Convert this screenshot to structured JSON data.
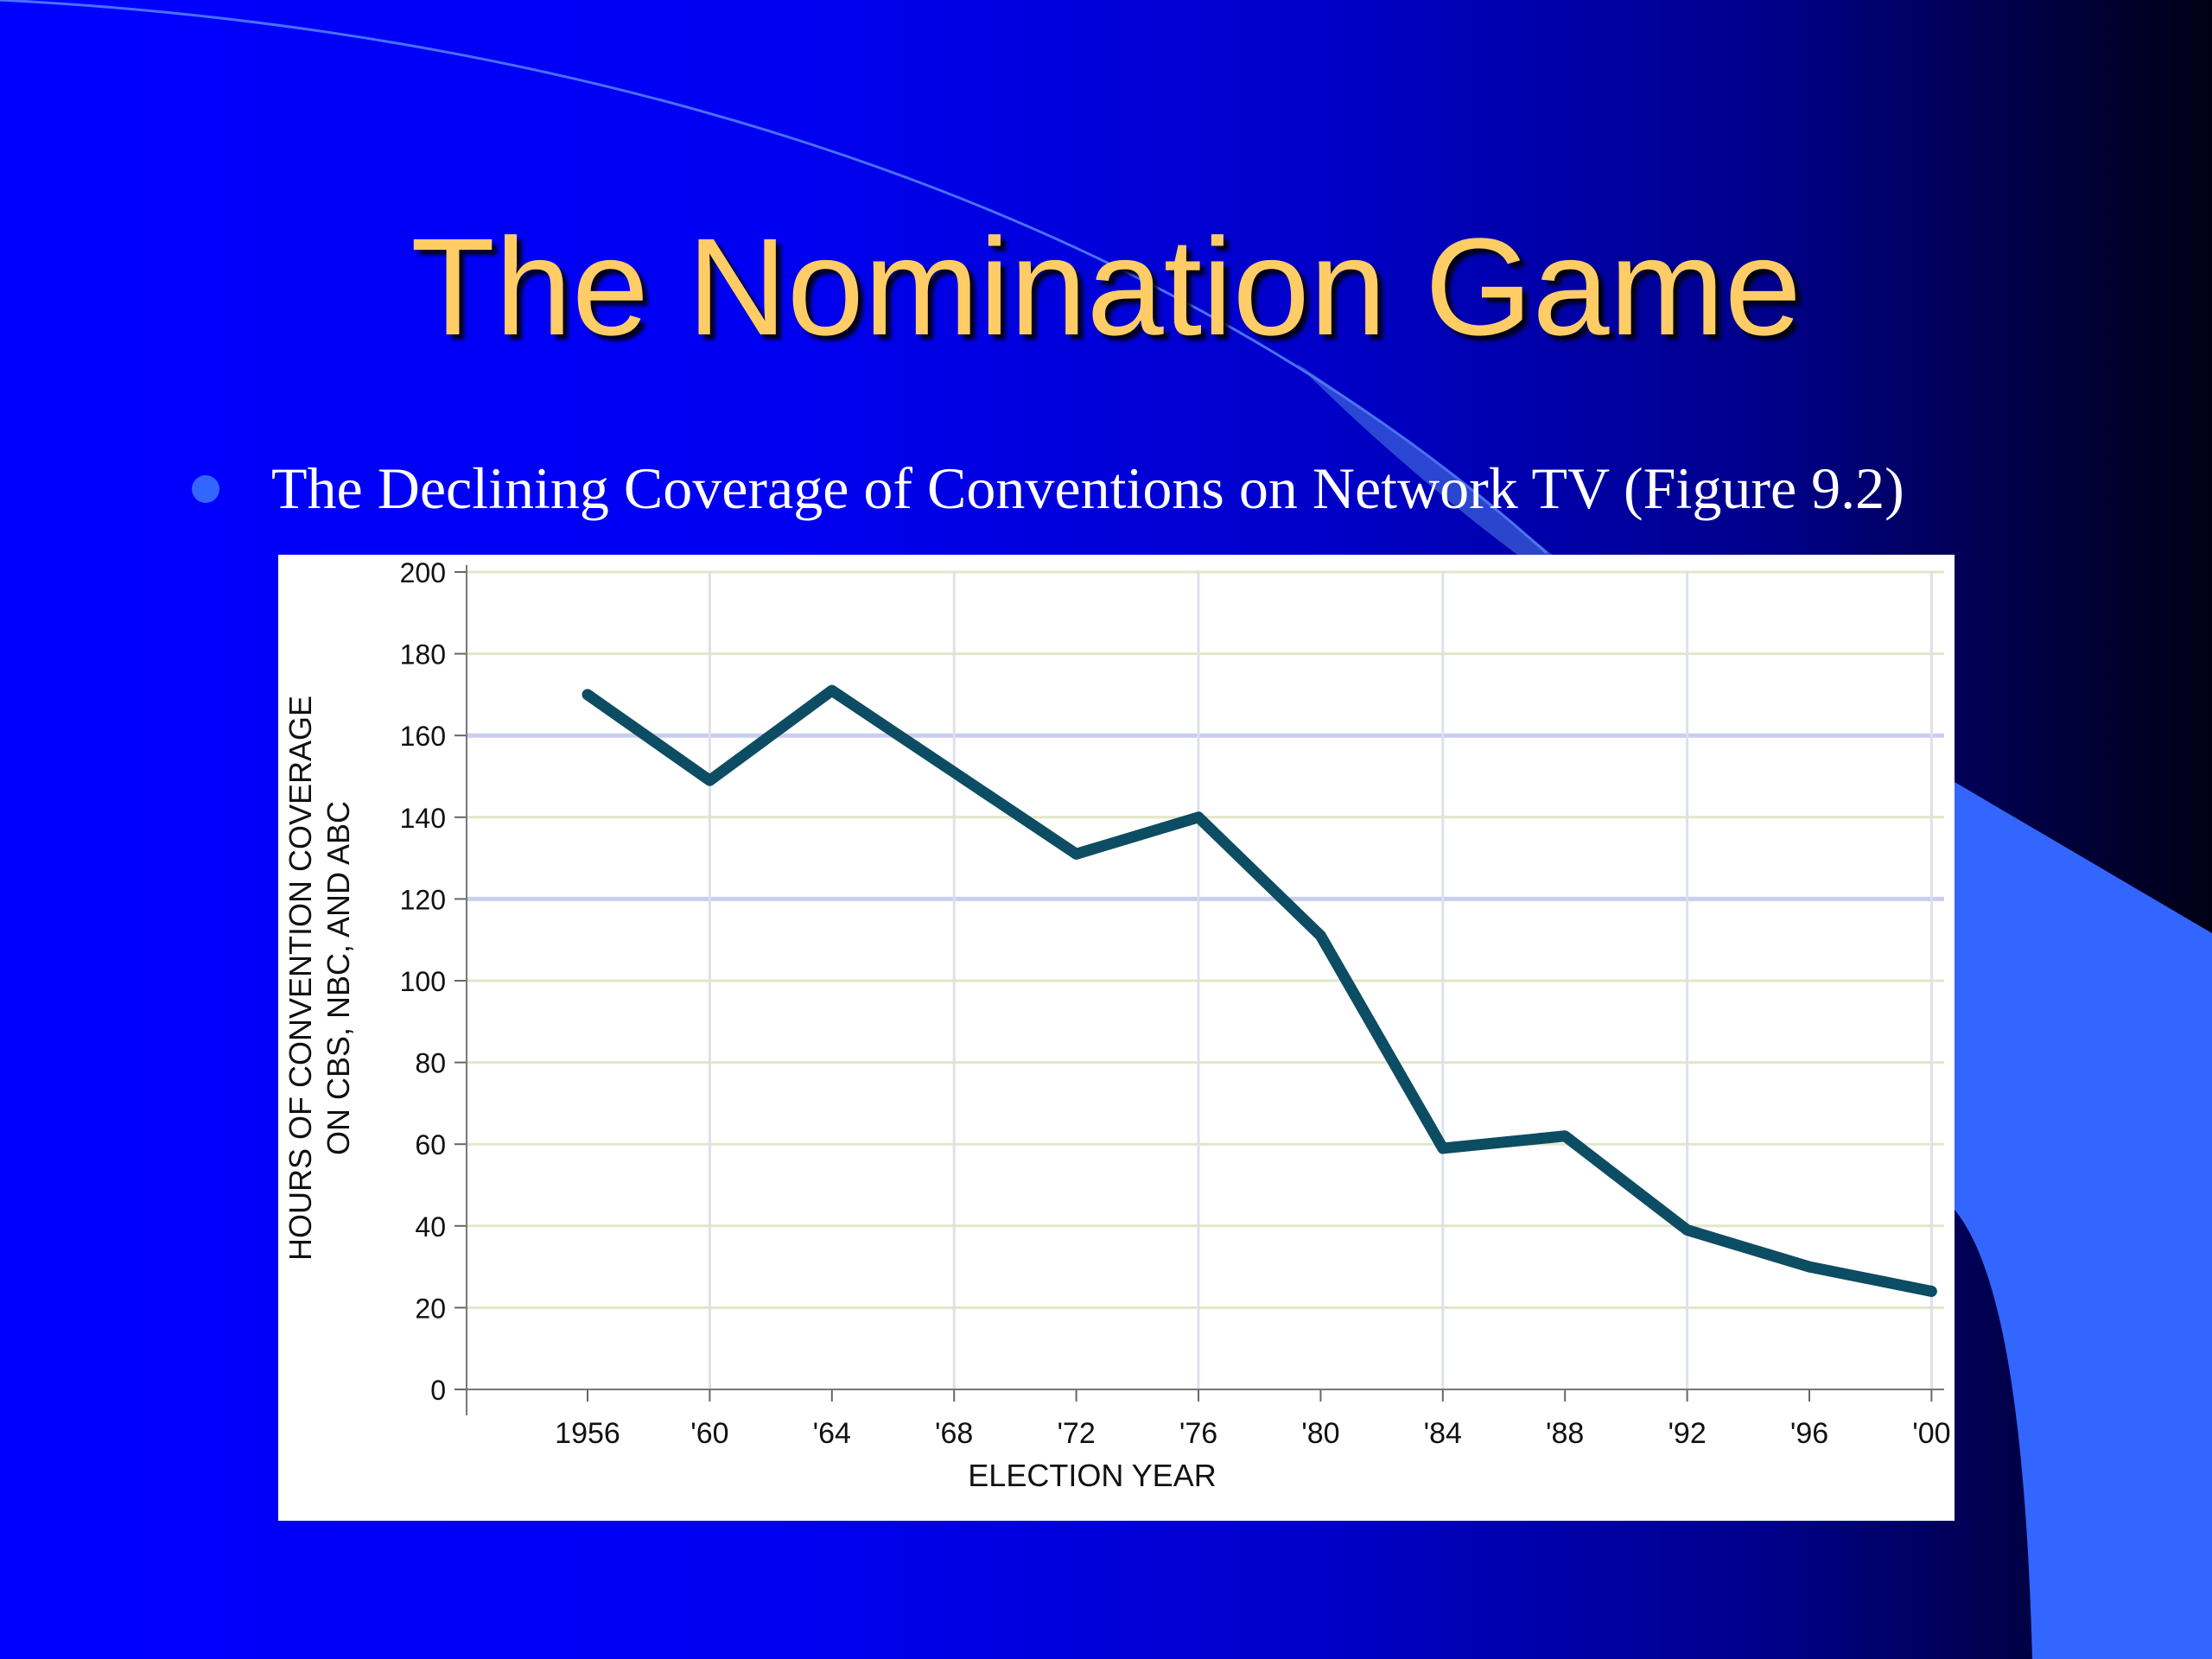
{
  "slide": {
    "title": "The Nomination Game",
    "bullet": "The Declining Coverage of Conventions on Network TV (Figure 9.2)",
    "colors": {
      "title": "#ffcc66",
      "bullet_dot": "#3366ff",
      "background": "#0000ff",
      "accent_shape": "#3366ff"
    }
  },
  "chart_data": {
    "type": "line",
    "title": "",
    "xlabel": "ELECTION YEAR",
    "ylabel_lines": [
      "HOURS OF CONVENTION COVERAGE",
      "ON CBS, NBC, AND ABC"
    ],
    "categories": [
      "1956",
      "'60",
      "'64",
      "'68",
      "'72",
      "'76",
      "'80",
      "'84",
      "'88",
      "'92",
      "'96",
      "'00"
    ],
    "series": [
      {
        "values": [
          170,
          149,
          171,
          151,
          131,
          140,
          111,
          59,
          62,
          39,
          30,
          24
        ],
        "color": "#0d4d63"
      }
    ],
    "ylim": [
      0,
      200
    ],
    "yticks": [
      0,
      20,
      40,
      60,
      80,
      100,
      120,
      140,
      160,
      180,
      200
    ],
    "grid": true
  }
}
